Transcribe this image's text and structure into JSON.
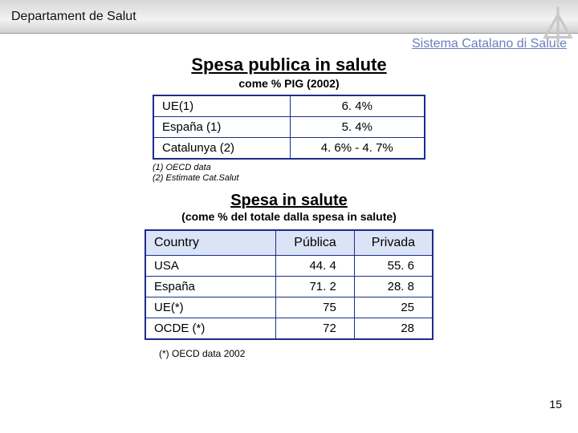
{
  "header": {
    "dept": "Departament de Salut",
    "system": "Sistema Catalano di Salute"
  },
  "section1": {
    "title": "Spesa publica in salute",
    "subtitle": "come % PIG (2002)",
    "rows": [
      {
        "label": "UE(1)",
        "value": "6. 4%"
      },
      {
        "label": "España (1)",
        "value": "5. 4%"
      },
      {
        "label": "Catalunya (2)",
        "value": "4. 6% - 4. 7%"
      }
    ],
    "footnote_a": "(1) OECD data",
    "footnote_b": "(2) Estimate Cat.Salut"
  },
  "section2": {
    "title": "Spesa in salute",
    "subtitle": "(come % del totale dalla spesa in salute)",
    "headers": {
      "c1": "Country",
      "c2": "Pública",
      "c3": "Privada"
    },
    "rows": [
      {
        "country": "USA",
        "pub": "44. 4",
        "priv": "55. 6"
      },
      {
        "country": "España",
        "pub": "71. 2",
        "priv": "28. 8"
      },
      {
        "country": "UE(*)",
        "pub": "75",
        "priv": "25"
      },
      {
        "country": "OCDE (*)",
        "pub": "72",
        "priv": "28"
      }
    ],
    "footnote": "(*) OECD data 2002"
  },
  "page_number": "15",
  "styling": {
    "border_color": "#1a2d8a",
    "th_bg": "#dbe4f7",
    "link_color": "#6a7fc1",
    "logo_color": "#c8c8c8"
  }
}
